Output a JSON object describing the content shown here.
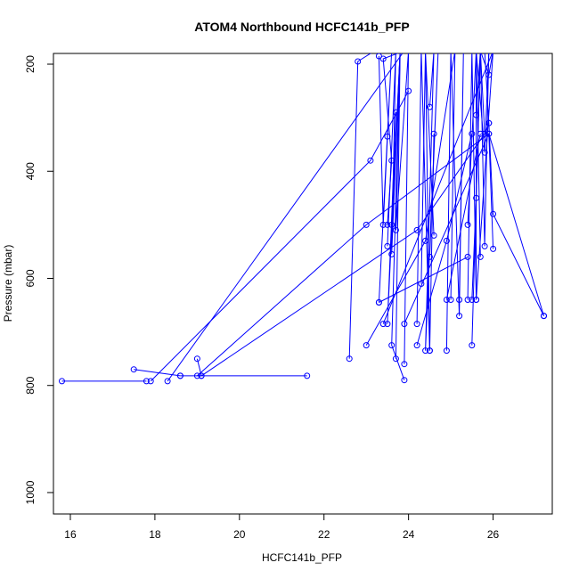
{
  "chart_data": {
    "type": "line",
    "title": "ATOM4 Northbound HCFC141b_PFP",
    "xlabel": "HCFC141b_PFP",
    "ylabel": "Pressure (mbar)",
    "xlim": [
      15.6,
      27.4
    ],
    "ylim": [
      1040,
      180
    ],
    "y_reversed": true,
    "x_ticks": [
      "16",
      "18",
      "20",
      "22",
      "24",
      "26"
    ],
    "y_ticks": [
      "200",
      "400",
      "600",
      "800",
      "1000"
    ],
    "grid": false,
    "legend": "none",
    "series_color": "#0000ff",
    "marker": "open-circle",
    "series": [
      {
        "x": [
          15.8,
          17.8
        ],
        "y": [
          792,
          792
        ]
      },
      {
        "x": [
          17.5,
          18.6
        ],
        "y": [
          770,
          782
        ]
      },
      {
        "x": [
          18.3,
          23.9,
          23.4,
          23.6,
          23.5
        ],
        "y": [
          792,
          175,
          190,
          380,
          500
        ]
      },
      {
        "x": [
          18.6,
          21.6
        ],
        "y": [
          782,
          782
        ]
      },
      {
        "x": [
          17.9,
          23.1,
          24.0
        ],
        "y": [
          792,
          380,
          250
        ]
      },
      {
        "x": [
          19.0,
          19.1
        ],
        "y": [
          750,
          782
        ]
      },
      {
        "x": [
          19.0,
          23.0,
          25.9,
          26.0
        ],
        "y": [
          782,
          500,
          330,
          545
        ]
      },
      {
        "x": [
          19.1,
          24.2,
          25.8,
          25.9
        ],
        "y": [
          782,
          510,
          330,
          310
        ]
      },
      {
        "x": [
          22.6,
          22.8,
          23.2
        ],
        "y": [
          750,
          195,
          175
        ]
      },
      {
        "x": [
          23.3,
          23.4,
          23.6,
          23.3,
          23.5
        ],
        "y": [
          185,
          500,
          175,
          645,
          335
        ]
      },
      {
        "x": [
          23.5,
          23.7,
          23.6,
          23.8,
          23.7
        ],
        "y": [
          540,
          175,
          555,
          175,
          750
        ]
      },
      {
        "x": [
          23.6,
          23.8,
          23.7,
          24.0,
          23.9
        ],
        "y": [
          500,
          175,
          510,
          175,
          760
        ]
      },
      {
        "x": [
          23.7,
          23.5,
          23.8,
          23.6,
          23.9
        ],
        "y": [
          290,
          685,
          175,
          725,
          790
        ]
      },
      {
        "x": [
          23.0,
          24.4,
          25.1,
          25.0
        ],
        "y": [
          725,
          530,
          175,
          640
        ]
      },
      {
        "x": [
          24.3,
          24.4,
          24.5,
          24.4,
          24.6
        ],
        "y": [
          610,
          175,
          735,
          175,
          520
        ]
      },
      {
        "x": [
          24.5,
          24.6,
          24.4,
          24.7,
          24.5
        ],
        "y": [
          280,
          175,
          735,
          175,
          560
        ]
      },
      {
        "x": [
          24.2,
          24.3,
          24.5,
          24.6
        ],
        "y": [
          685,
          175,
          735,
          330
        ]
      },
      {
        "x": [
          24.9,
          25.0,
          25.2,
          25.3,
          25.2
        ],
        "y": [
          735,
          175,
          670,
          175,
          640
        ]
      },
      {
        "x": [
          25.4,
          25.5,
          25.6,
          25.6,
          25.7
        ],
        "y": [
          640,
          175,
          640,
          175,
          560
        ]
      },
      {
        "x": [
          25.4,
          25.6,
          25.8,
          25.9
        ],
        "y": [
          500,
          175,
          365,
          175
        ]
      },
      {
        "x": [
          25.5,
          25.7,
          25.9,
          26.0
        ],
        "y": [
          725,
          175,
          220,
          175
        ]
      },
      {
        "x": [
          25.8,
          25.9,
          26.0,
          27.2
        ],
        "y": [
          175,
          310,
          480,
          670
        ]
      },
      {
        "x": [
          25.6,
          25.7,
          25.8,
          25.9
        ],
        "y": [
          295,
          175,
          540,
          175
        ]
      },
      {
        "x": [
          25.5,
          25.6,
          25.7,
          25.8
        ],
        "y": [
          640,
          450,
          175,
          330
        ]
      },
      {
        "x": [
          23.4,
          26.0,
          25.6
        ],
        "y": [
          685,
          175,
          640
        ]
      },
      {
        "x": [
          23.9,
          25.9,
          27.2
        ],
        "y": [
          685,
          330,
          670
        ]
      },
      {
        "x": [
          24.9,
          25.7
        ],
        "y": [
          640,
          330
        ]
      },
      {
        "x": [
          23.3,
          25.4
        ],
        "y": [
          645,
          560
        ]
      },
      {
        "x": [
          24.2,
          24.9,
          25.5
        ],
        "y": [
          725,
          530,
          330
        ]
      }
    ]
  }
}
